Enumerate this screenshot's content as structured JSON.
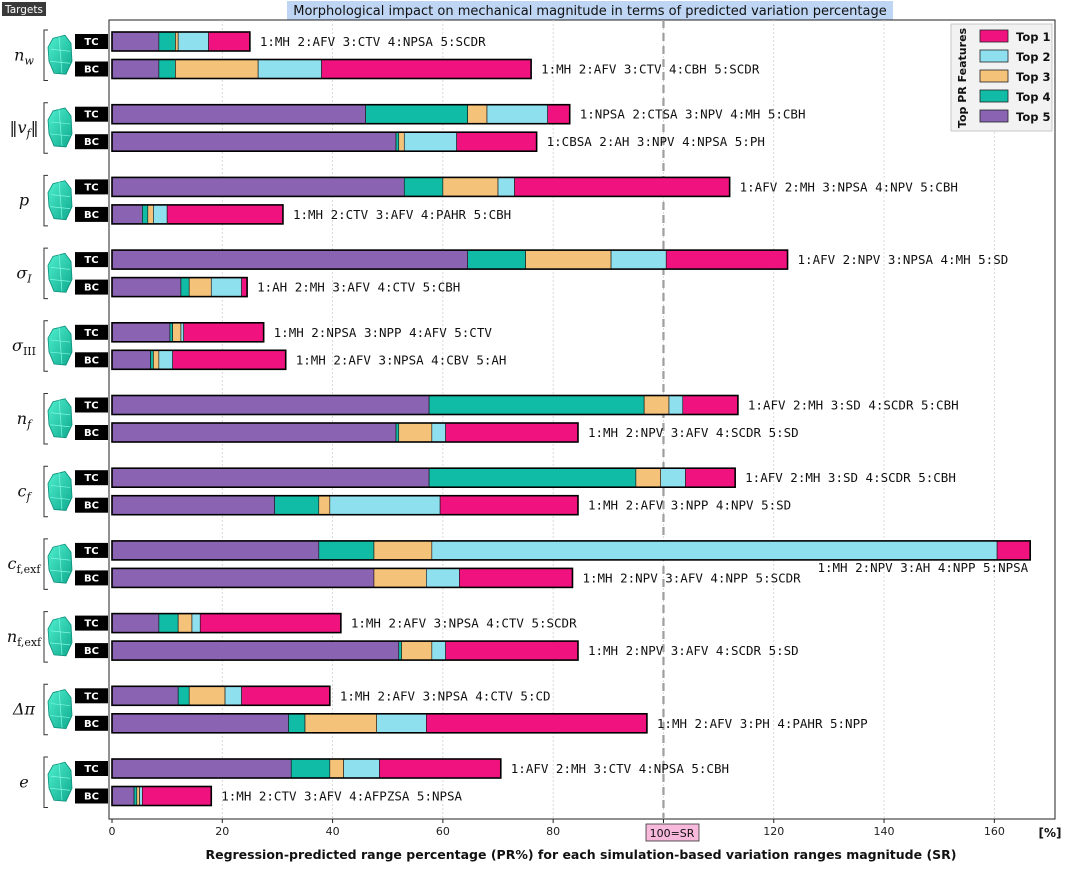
{
  "figure": {
    "corner_label": "Targets",
    "title": "Morphological impact on mechanical magnitude in terms of predicted variation percentage",
    "xlabel": "Regression-predicted range percentage (PR%) for each simulation-based variation ranges magnitude (SR)",
    "unit_label": "[%]",
    "reference_line": {
      "x": 100,
      "label": "100=SR",
      "color": "#9e9e9e"
    },
    "row_tags": [
      "TC",
      "BC"
    ]
  },
  "chart_data": {
    "type": "stacked-horizontal-bar",
    "xlim": [
      0,
      171
    ],
    "xticks": [
      0,
      20,
      40,
      60,
      80,
      100,
      120,
      140,
      160
    ],
    "grid": true,
    "legend": {
      "title": "Top PR Features",
      "placement": "top-right",
      "entries": [
        {
          "name": "Top 1",
          "color": "#f0137f"
        },
        {
          "name": "Top 2",
          "color": "#8fe0ef"
        },
        {
          "name": "Top 3",
          "color": "#f5c27a"
        },
        {
          "name": "Top 4",
          "color": "#10bca6"
        },
        {
          "name": "Top 5",
          "color": "#8a64b3"
        }
      ]
    },
    "segment_order": [
      "Top 5",
      "Top 4",
      "Top 3",
      "Top 2",
      "Top 1"
    ],
    "targets": [
      {
        "symbol": "n_w",
        "label": "n",
        "sub": "w",
        "rows": [
          {
            "tag": "TC",
            "segments": [
              8.5,
              3.0,
              0.5,
              5.5,
              7.5
            ],
            "annotation": "1:MH 2:AFV 3:CTV 4:NPSA 5:SCDR"
          },
          {
            "tag": "BC",
            "segments": [
              8.5,
              3.0,
              15.0,
              11.5,
              38.0
            ],
            "annotation": "1:MH 2:AFV 3:CTV 4:CBH 5:SCDR"
          }
        ]
      },
      {
        "symbol": "||v_f||",
        "label": "‖v",
        "sub": "f",
        "tail": "‖",
        "rows": [
          {
            "tag": "TC",
            "segments": [
              46.0,
              18.5,
              3.5,
              11.0,
              4.0
            ],
            "annotation": "1:NPSA 2:CTSA 3:NPV 4:MH 5:CBH"
          },
          {
            "tag": "BC",
            "segments": [
              51.5,
              0.5,
              1.0,
              9.5,
              14.5
            ],
            "annotation": "1:CBSA 2:AH 3:NPV 4:NPSA 5:PH"
          }
        ]
      },
      {
        "symbol": "p",
        "label": "p",
        "sub": "",
        "rows": [
          {
            "tag": "TC",
            "segments": [
              53.0,
              7.0,
              10.0,
              3.0,
              39.0
            ],
            "annotation": "1:AFV 2:MH 3:NPSA 4:NPV 5:CBH"
          },
          {
            "tag": "BC",
            "segments": [
              5.5,
              1.0,
              1.0,
              2.5,
              21.0
            ],
            "annotation": "1:MH 2:CTV 3:AFV 4:PAHR 5:CBH"
          }
        ]
      },
      {
        "symbol": "sigma_I",
        "label": "σ",
        "sub": "I",
        "rows": [
          {
            "tag": "TC",
            "segments": [
              64.5,
              10.5,
              15.5,
              10.0,
              22.0
            ],
            "annotation": "1:AFV 2:NPV 3:NPSA 4:MH 5:SD"
          },
          {
            "tag": "BC",
            "segments": [
              12.5,
              1.5,
              4.0,
              5.5,
              1.0
            ],
            "annotation": "1:AH 2:MH 3:AFV 4:CTV 5:CBH"
          }
        ]
      },
      {
        "symbol": "sigma_III",
        "label": "σ",
        "sub": "III",
        "rows": [
          {
            "tag": "TC",
            "segments": [
              10.5,
              0.5,
              1.5,
              0.5,
              14.5
            ],
            "annotation": "1:MH 2:NPSA 3:NPP 4:AFV 5:CTV"
          },
          {
            "tag": "BC",
            "segments": [
              7.0,
              0.5,
              1.0,
              2.5,
              20.5
            ],
            "annotation": "1:MH 2:AFV 3:NPSA 4:CBV 5:AH"
          }
        ]
      },
      {
        "symbol": "n_f",
        "label": "n",
        "sub": "f",
        "rows": [
          {
            "tag": "TC",
            "segments": [
              57.5,
              39.0,
              4.5,
              2.5,
              10.0
            ],
            "annotation": "1:AFV 2:MH 3:SD 4:SCDR 5:CBH"
          },
          {
            "tag": "BC",
            "segments": [
              51.5,
              0.5,
              6.0,
              2.5,
              24.0
            ],
            "annotation": "1:MH 2:NPV 3:AFV 4:SCDR 5:SD"
          }
        ]
      },
      {
        "symbol": "c_f",
        "label": "c",
        "sub": "f",
        "rows": [
          {
            "tag": "TC",
            "segments": [
              57.5,
              37.5,
              4.5,
              4.5,
              9.0
            ],
            "annotation": "1:AFV 2:MH 3:SD 4:SCDR 5:CBH"
          },
          {
            "tag": "BC",
            "segments": [
              29.5,
              8.0,
              2.0,
              20.0,
              25.0
            ],
            "annotation": "1:MH 2:AFV 3:NPP 4:NPV 5:SD"
          }
        ]
      },
      {
        "symbol": "c_f,exf",
        "label": "c",
        "sub": "f,exf",
        "rows": [
          {
            "tag": "TC",
            "segments": [
              37.5,
              10.0,
              10.5,
              102.5,
              6.0
            ],
            "annotation": "1:MH 2:NPV 3:AH 4:NPP 5:NPSA"
          },
          {
            "tag": "BC",
            "segments": [
              47.5,
              0.0,
              9.5,
              6.0,
              20.5
            ],
            "annotation": "1:MH 2:NPV 3:AFV 4:NPP 5:SCDR"
          }
        ]
      },
      {
        "symbol": "n_f,exf",
        "label": "n",
        "sub": "f,exf",
        "rows": [
          {
            "tag": "TC",
            "segments": [
              8.5,
              3.5,
              2.5,
              1.5,
              25.5
            ],
            "annotation": "1:MH 2:AFV 3:NPSA 4:CTV 5:SCDR"
          },
          {
            "tag": "BC",
            "segments": [
              52.0,
              0.5,
              5.5,
              2.5,
              24.0
            ],
            "annotation": "1:MH 2:NPV 3:AFV 4:SCDR 5:SD"
          }
        ]
      },
      {
        "symbol": "Delta_pi",
        "label": "Δπ",
        "sub": "",
        "rows": [
          {
            "tag": "TC",
            "segments": [
              12.0,
              2.0,
              6.5,
              3.0,
              16.0
            ],
            "annotation": "1:MH 2:AFV 3:NPSA 4:CTV 5:CD"
          },
          {
            "tag": "BC",
            "segments": [
              32.0,
              3.0,
              13.0,
              9.0,
              40.0
            ],
            "annotation": "1:MH 2:AFV 3:PH 4:PAHR 5:NPP"
          }
        ]
      },
      {
        "symbol": "e",
        "label": "e",
        "sub": "",
        "rows": [
          {
            "tag": "TC",
            "segments": [
              32.5,
              7.0,
              2.5,
              6.5,
              22.0
            ],
            "annotation": "1:AFV 2:MH 3:CTV 4:NPSA 5:CBH"
          },
          {
            "tag": "BC",
            "segments": [
              4.0,
              0.5,
              0.5,
              0.5,
              12.5
            ],
            "annotation": "1:MH 2:CTV 3:AFV 4:AFPZSA 5:NPSA"
          }
        ]
      }
    ]
  }
}
